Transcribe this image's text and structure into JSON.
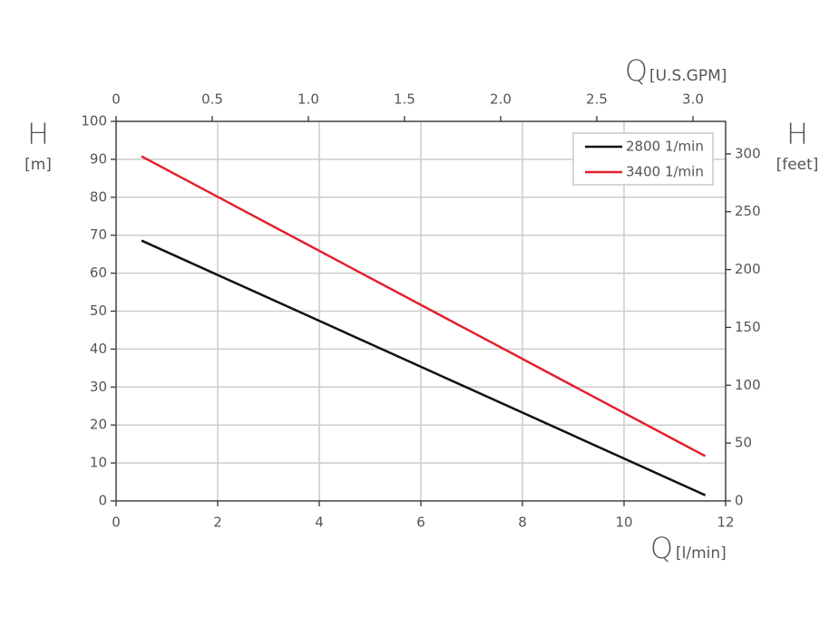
{
  "chart_data": {
    "type": "line",
    "y_label": "H",
    "y_unit": "[m]",
    "y2_label": "H",
    "y2_unit": "[feet]",
    "x_label": "Q",
    "x_unit": "[l/min]",
    "x2_label": "Q",
    "x2_unit": "[U.S.GPM]",
    "x": [
      0.5,
      11.6
    ],
    "series": [
      {
        "name": "2800 1/min",
        "color": "#111111",
        "values": [
          68.6,
          1.5
        ]
      },
      {
        "name": "3400 1/min",
        "color": "#e3202a",
        "values": [
          90.8,
          11.8
        ]
      }
    ],
    "xlim": [
      0,
      12
    ],
    "xticks": [
      0,
      2,
      4,
      6,
      8,
      10,
      12
    ],
    "ylim": [
      0,
      100
    ],
    "yticks": [
      0,
      10,
      20,
      30,
      40,
      50,
      60,
      70,
      80,
      90,
      100
    ],
    "x2lim": [
      0,
      3.17
    ],
    "x2ticks": [
      0,
      0.5,
      {
        "value": 1,
        "label": "1.0"
      },
      1.5,
      {
        "value": 2,
        "label": "2.0"
      },
      2.5,
      {
        "value": 3,
        "label": "3.0"
      }
    ],
    "y2lim": [
      0,
      328.1
    ],
    "y2ticks": [
      0,
      50,
      100,
      150,
      200,
      250,
      300
    ],
    "grid": true,
    "legend": "upper right"
  }
}
